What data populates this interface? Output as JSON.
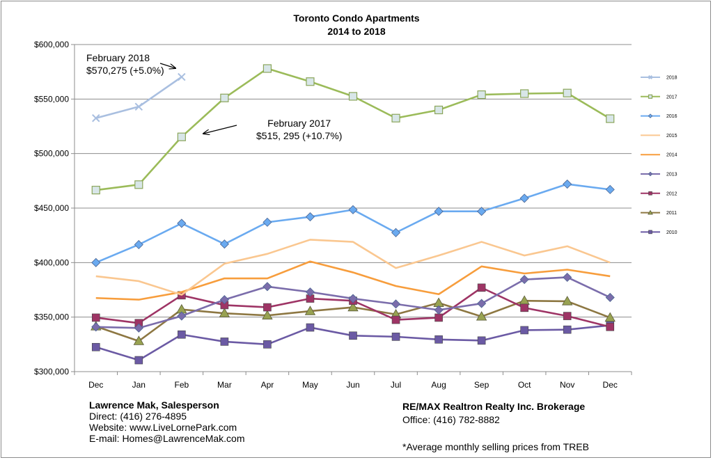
{
  "chart_data": {
    "type": "line",
    "title": "Toronto Condo Apartments",
    "subtitle": "2014 to 2018",
    "xlabel": "",
    "ylabel": "",
    "categories": [
      "Dec",
      "Jan",
      "Feb",
      "Mar",
      "Apr",
      "May",
      "Jun",
      "Jul",
      "Aug",
      "Sep",
      "Oct",
      "Nov",
      "Dec"
    ],
    "ylim": [
      300000,
      600000
    ],
    "yticks": [
      300000,
      350000,
      400000,
      450000,
      500000,
      550000,
      600000
    ],
    "ytick_labels": [
      "$300,000",
      "$350,000",
      "$400,000",
      "$450,000",
      "$500,000",
      "$550,000",
      "$600,000"
    ],
    "grid": true,
    "legend_position": "right",
    "series": [
      {
        "name": "2018",
        "color": "#a9bfe0",
        "marker": "x",
        "values": [
          532500,
          543000,
          570275,
          null,
          null,
          null,
          null,
          null,
          null,
          null,
          null,
          null,
          null
        ]
      },
      {
        "name": "2017",
        "color": "#9bbb59",
        "marker": "square-light",
        "values": [
          466500,
          471500,
          515295,
          551000,
          578000,
          566000,
          552500,
          532500,
          540000,
          554000,
          555000,
          555500,
          532000
        ]
      },
      {
        "name": "2016",
        "color": "#6aaaf0",
        "marker": "diamond",
        "values": [
          400000,
          416500,
          436000,
          417000,
          437000,
          442000,
          448500,
          427500,
          447000,
          447000,
          459000,
          472000,
          467000
        ]
      },
      {
        "name": "2015",
        "color": "#fac790",
        "marker": "none",
        "values": [
          387500,
          383000,
          370500,
          399000,
          408000,
          421000,
          419000,
          395000,
          406500,
          419000,
          406500,
          415000,
          400000
        ]
      },
      {
        "name": "2014",
        "color": "#f79d3c",
        "marker": "none",
        "values": [
          367500,
          366000,
          373000,
          385500,
          385500,
          401000,
          391000,
          378500,
          371000,
          396500,
          390000,
          393500,
          387500
        ]
      },
      {
        "name": "2013",
        "color": "#7b6dab",
        "marker": "diamond",
        "values": [
          341000,
          340000,
          351000,
          366000,
          378000,
          373000,
          367000,
          362000,
          356500,
          362500,
          384500,
          386500,
          368000
        ]
      },
      {
        "name": "2012",
        "color": "#9e3465",
        "marker": "square",
        "values": [
          349500,
          344500,
          370000,
          361000,
          359000,
          367000,
          365000,
          347500,
          349500,
          377000,
          358500,
          351000,
          341000
        ]
      },
      {
        "name": "2011",
        "color": "#8d7742",
        "marker": "triangle",
        "values": [
          341500,
          328000,
          357000,
          353500,
          351500,
          355500,
          359000,
          352500,
          363000,
          350500,
          365000,
          364500,
          349500
        ]
      },
      {
        "name": "2010",
        "color": "#6b5aa4",
        "marker": "square",
        "values": [
          322500,
          310500,
          334000,
          327500,
          325000,
          340500,
          333000,
          332000,
          329500,
          328500,
          338000,
          338500,
          342500
        ]
      }
    ],
    "annotations": [
      {
        "line1": "February 2018",
        "line2": "$570,275 (+5.0%)"
      },
      {
        "line1": "February 2017",
        "line2": "$515, 295 (+10.7%)"
      }
    ]
  },
  "footer": {
    "agent_name": "Lawrence Mak, Salesperson",
    "direct": "Direct:  (416) 276-4895",
    "website": "Website:  www.LiveLornePark.com",
    "email": "E-mail:  Homes@LawrenceMak.com",
    "brokerage": "RE/MAX Realtron Realty Inc. Brokerage",
    "office": "Office: (416) 782-8882",
    "note": "*Average monthly selling prices from TREB"
  }
}
